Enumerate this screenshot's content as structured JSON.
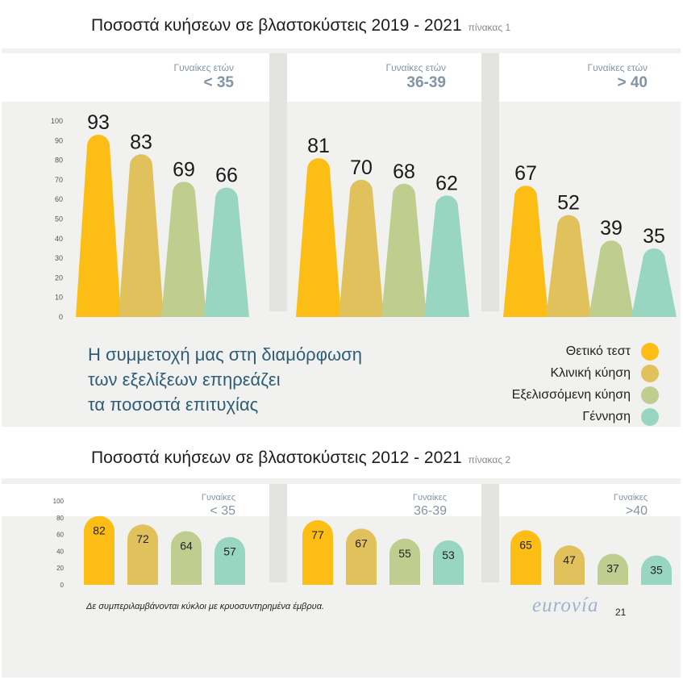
{
  "title1": {
    "text": "Ποσοστά κυήσεων σε βλαστοκύστεις 2019 - 2021",
    "tag": "πίνακας 1"
  },
  "title2": {
    "text": "Ποσοστά κυήσεων σε βλαστοκύστεις 2012 - 2021",
    "tag": "πίνακας 2"
  },
  "tagline": [
    "Η συμμετοχή μας στη διαμόρφωση",
    "των εξελίξεων επηρεάζει",
    "τα ποσοστά επιτυχίας"
  ],
  "legend": [
    {
      "label": "Θετικό τεστ",
      "color": "#fcbd15"
    },
    {
      "label": "Κλινική κύηση",
      "color": "#e0c15c"
    },
    {
      "label": "Εξελισσόμενη κύηση",
      "color": "#bfcd8e"
    },
    {
      "label": "Γέννηση",
      "color": "#99d6c1"
    }
  ],
  "footnote": "Δε συμπεριλαμβάνονται κύκλοι με κρυοσυντηρημένα έμβρυα.",
  "logo": "eurovía",
  "page_number": "21",
  "chart_data": [
    {
      "type": "bar",
      "title": "Ποσοστά κυήσεων σε βλαστοκύστεις 2019 - 2021",
      "categories": [
        "Γυναίκες ετών < 35",
        "Γυναίκες ετών 36-39",
        "Γυναίκες ετών > 40"
      ],
      "group_labels": [
        {
          "line1": "Γυναίκες ετών",
          "line2": "< 35"
        },
        {
          "line1": "Γυναίκες ετών",
          "line2": "36-39"
        },
        {
          "line1": "Γυναίκες ετών",
          "line2": "> 40"
        }
      ],
      "series": [
        {
          "name": "Θετικό τεστ",
          "values": [
            93,
            81,
            67
          ]
        },
        {
          "name": "Κλινική κύηση",
          "values": [
            83,
            70,
            52
          ]
        },
        {
          "name": "Εξελισσόμενη κύηση",
          "values": [
            69,
            68,
            39
          ]
        },
        {
          "name": "Γέννηση",
          "values": [
            66,
            62,
            35
          ]
        }
      ],
      "ylim": [
        0,
        100
      ],
      "yticks": [
        0,
        10,
        20,
        30,
        40,
        50,
        60,
        70,
        80,
        90,
        100
      ]
    },
    {
      "type": "bar",
      "title": "Ποσοστά κυήσεων σε βλαστοκύστεις 2012 - 2021",
      "categories": [
        "Γυναίκες < 35",
        "Γυναίκες 36-39",
        "Γυναίκες >40"
      ],
      "group_labels": [
        {
          "line1": "Γυναίκες",
          "line2": "< 35"
        },
        {
          "line1": "Γυναίκες",
          "line2": "36-39"
        },
        {
          "line1": "Γυναίκες",
          "line2": ">40"
        }
      ],
      "series": [
        {
          "name": "Θετικό τεστ",
          "values": [
            82,
            77,
            65
          ]
        },
        {
          "name": "Κλινική κύηση",
          "values": [
            72,
            67,
            47
          ]
        },
        {
          "name": "Εξελισσόμενη κύηση",
          "values": [
            64,
            55,
            37
          ]
        },
        {
          "name": "Γέννηση",
          "values": [
            57,
            53,
            35
          ]
        }
      ],
      "ylim": [
        0,
        100
      ],
      "yticks": [
        0,
        20,
        40,
        60,
        80,
        100
      ]
    }
  ]
}
